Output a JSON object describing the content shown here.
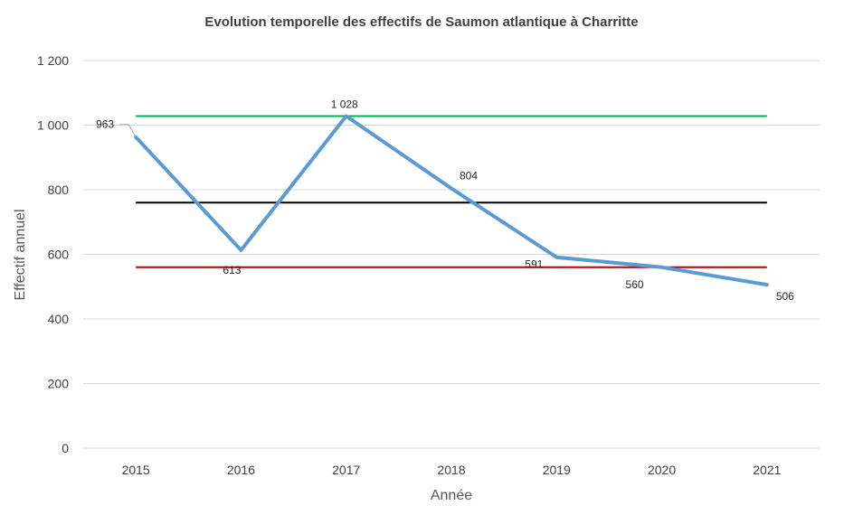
{
  "chart_data": {
    "type": "line",
    "title": "Evolution temporelle des effectifs de Saumon atlantique à Charritte",
    "xlabel": "Année",
    "ylabel": "Effectif annuel",
    "categories": [
      "2015",
      "2016",
      "2017",
      "2018",
      "2019",
      "2020",
      "2021"
    ],
    "ylim": [
      0,
      1200
    ],
    "yticks": [
      0,
      200,
      400,
      600,
      800,
      1000,
      1200
    ],
    "ytick_labels": [
      "0",
      "200",
      "400",
      "600",
      "800",
      "1 000",
      "1 200"
    ],
    "grid": true,
    "series": [
      {
        "values": [
          963,
          613,
          1028,
          804,
          591,
          560,
          506
        ],
        "labels": [
          "963",
          "613",
          "1 028",
          "804",
          "591",
          "560",
          "506"
        ],
        "color": "#5b9bd5"
      }
    ],
    "reference_lines": [
      {
        "value": 1028,
        "color": "#00b050"
      },
      {
        "value": 760,
        "color": "#000000"
      },
      {
        "value": 560,
        "color": "#c00000"
      }
    ],
    "gridline_color": "#d9d9d9"
  }
}
